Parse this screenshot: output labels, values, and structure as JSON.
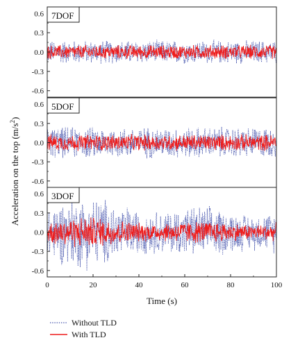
{
  "chart_data": {
    "type": "line",
    "xlabel": "Time (s)",
    "ylabel_main": "Acceleration on the top (m/s",
    "ylabel_sup": "2",
    "ylabel_tail": ")",
    "x_ticks": [
      "0",
      "20",
      "40",
      "60",
      "80",
      "100"
    ],
    "xlim": [
      0,
      100
    ],
    "y_ticks": [
      "0.6",
      "0.3",
      "0.0",
      "-0.3",
      "-0.6"
    ],
    "y_ticks_bottom": [
      "0.6",
      "0.3",
      "0.0",
      "-0.3",
      "-0.6"
    ],
    "ylim": [
      -0.7,
      0.7
    ],
    "legend": [
      {
        "name": "Without TLD",
        "color": "#3a4aa8",
        "style": "dotted"
      },
      {
        "name": "With TLD",
        "color": "#ee1c1c",
        "style": "solid"
      }
    ],
    "panels": [
      {
        "label": "7DOF",
        "without_tld_amplitude": 0.2,
        "with_tld_amplitude": 0.12
      },
      {
        "label": "5DOF",
        "without_tld_amplitude": 0.27,
        "with_tld_amplitude": 0.14
      },
      {
        "label": "3DOF",
        "without_tld_amplitude": 0.63,
        "with_tld_amplitude": 0.27
      }
    ]
  }
}
